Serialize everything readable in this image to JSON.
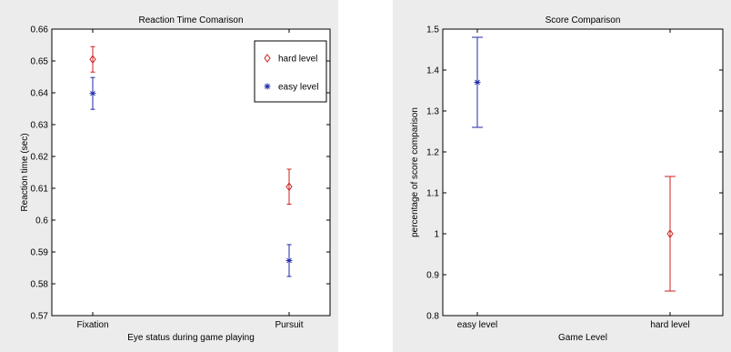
{
  "chart_data": [
    {
      "type": "scatter",
      "title": "Reaction Time Comarison",
      "xlabel": "Eye status during game playing",
      "ylabel": "Reaction time (sec)",
      "categories": [
        "Fixation",
        "Pursuit"
      ],
      "ylim": [
        0.57,
        0.66
      ],
      "yticks": [
        "0.57",
        "0.58",
        "0.59",
        "0.6",
        "0.61",
        "0.62",
        "0.63",
        "0.64",
        "0.65",
        "0.66"
      ],
      "legend_position": "top-right",
      "grid": false,
      "series": [
        {
          "name": "hard level",
          "marker": "diamond",
          "color": "#cc2222",
          "values": [
            0.6505,
            0.6105
          ],
          "err": [
            0.004,
            0.0055
          ]
        },
        {
          "name": "easy level",
          "marker": "star",
          "color": "#1f2aa8",
          "values": [
            0.6398,
            0.5873
          ],
          "err": [
            0.005,
            0.005
          ]
        }
      ]
    },
    {
      "type": "scatter",
      "title": "Score Comparison",
      "xlabel": "Game Level",
      "ylabel": "percentage of score comparison",
      "categories": [
        "easy level",
        "hard level"
      ],
      "ylim": [
        0.8,
        1.5
      ],
      "yticks": [
        "0.8",
        "0.9",
        "1",
        "1.1",
        "1.2",
        "1.3",
        "1.4",
        "1.5"
      ],
      "grid": false,
      "series": [
        {
          "marker": "star",
          "color": "#1f2aa8",
          "points": [
            {
              "category": "easy level",
              "value": 1.37,
              "low": 1.26,
              "high": 1.48
            }
          ]
        },
        {
          "marker": "diamond",
          "color": "#cc2222",
          "points": [
            {
              "category": "hard level",
              "value": 1.0,
              "low": 0.86,
              "high": 1.14
            }
          ]
        }
      ]
    }
  ]
}
